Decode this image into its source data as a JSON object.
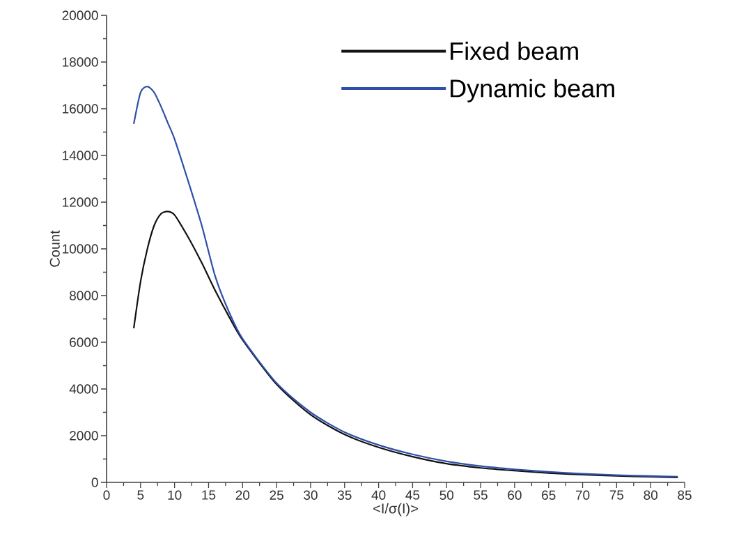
{
  "chart_data": {
    "type": "line",
    "xlabel": "<I/σ(I)>",
    "ylabel": "Count",
    "xlim": [
      0,
      85
    ],
    "ylim": [
      0,
      20000
    ],
    "xticks": [
      0,
      5,
      10,
      15,
      20,
      25,
      30,
      35,
      40,
      45,
      50,
      55,
      60,
      65,
      70,
      75,
      80,
      85
    ],
    "yticks": [
      0,
      2000,
      4000,
      6000,
      8000,
      10000,
      12000,
      14000,
      16000,
      18000,
      20000
    ],
    "legend": "top right",
    "series": [
      {
        "name": "Fixed beam",
        "color": "#111111",
        "x": [
          4,
          5,
          6,
          7,
          8,
          9,
          10,
          12,
          14,
          16,
          18,
          20,
          25,
          30,
          35,
          40,
          45,
          50,
          55,
          60,
          65,
          70,
          75,
          80,
          84
        ],
        "values": [
          6600,
          8600,
          10000,
          11000,
          11500,
          11600,
          11450,
          10500,
          9400,
          8200,
          7100,
          6100,
          4200,
          2900,
          2050,
          1500,
          1100,
          800,
          620,
          500,
          400,
          330,
          280,
          240,
          210
        ]
      },
      {
        "name": "Dynamic beam",
        "color": "#2f4fa8",
        "x": [
          4,
          5,
          6,
          7,
          8,
          9,
          10,
          12,
          14,
          16,
          18,
          20,
          25,
          30,
          35,
          40,
          45,
          50,
          55,
          60,
          65,
          70,
          75,
          80,
          84
        ],
        "values": [
          15350,
          16700,
          16950,
          16700,
          16100,
          15400,
          14700,
          12900,
          11000,
          8800,
          7300,
          6150,
          4250,
          3000,
          2150,
          1600,
          1200,
          900,
          700,
          560,
          450,
          370,
          310,
          270,
          240
        ]
      }
    ]
  }
}
